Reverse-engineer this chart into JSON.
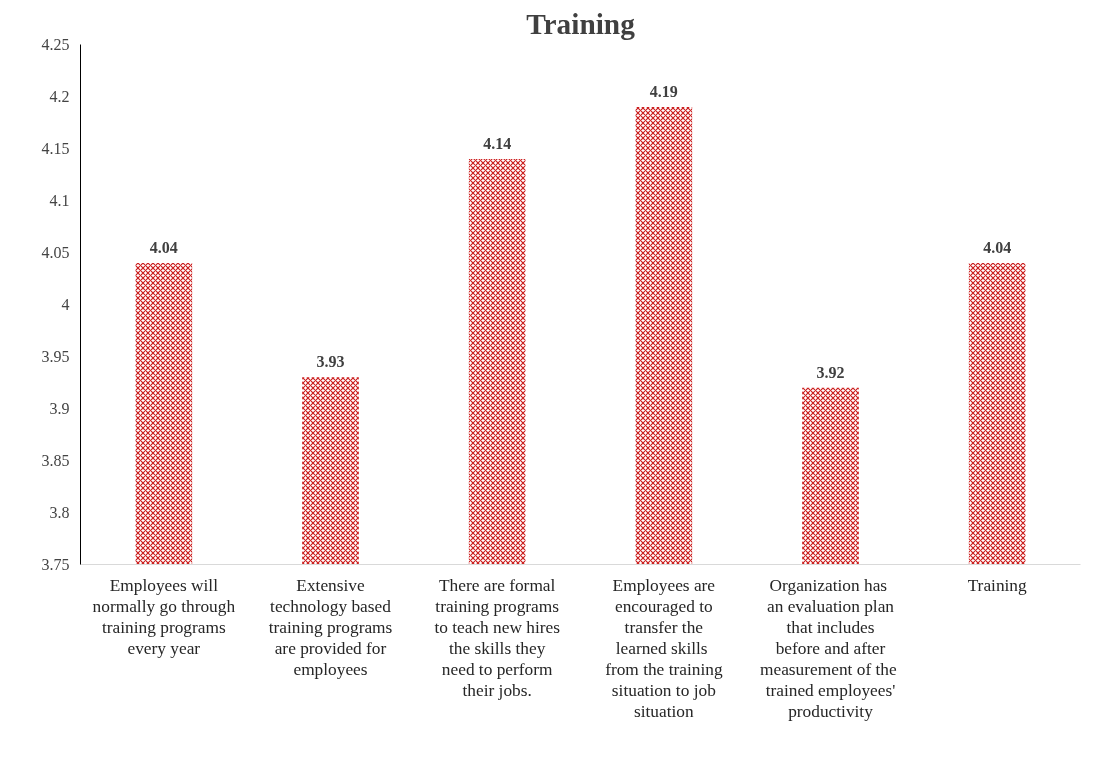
{
  "chart_data": {
    "type": "bar",
    "title": "Training",
    "categories": [
      "Employees will normally go through training programs every year",
      "Extensive technology based training programs are provided for employees",
      "There are formal training programs to teach new hires the skills they need to perform their jobs.",
      "Employees are encouraged to transfer the learned  skills from the training situation to job situation",
      "Organization  has an evaluation plan that includes before and after measurement  of the trained employees' productivity",
      "Training"
    ],
    "values": [
      4.04,
      3.93,
      4.14,
      4.19,
      3.92,
      4.04
    ],
    "color": "#cc1f1f",
    "ylim": [
      3.75,
      4.25
    ],
    "yticks": [
      3.75,
      3.8,
      3.85,
      3.9,
      3.95,
      4,
      4.05,
      4.1,
      4.15,
      4.2,
      4.25
    ],
    "grid": false,
    "data_labels": true
  }
}
